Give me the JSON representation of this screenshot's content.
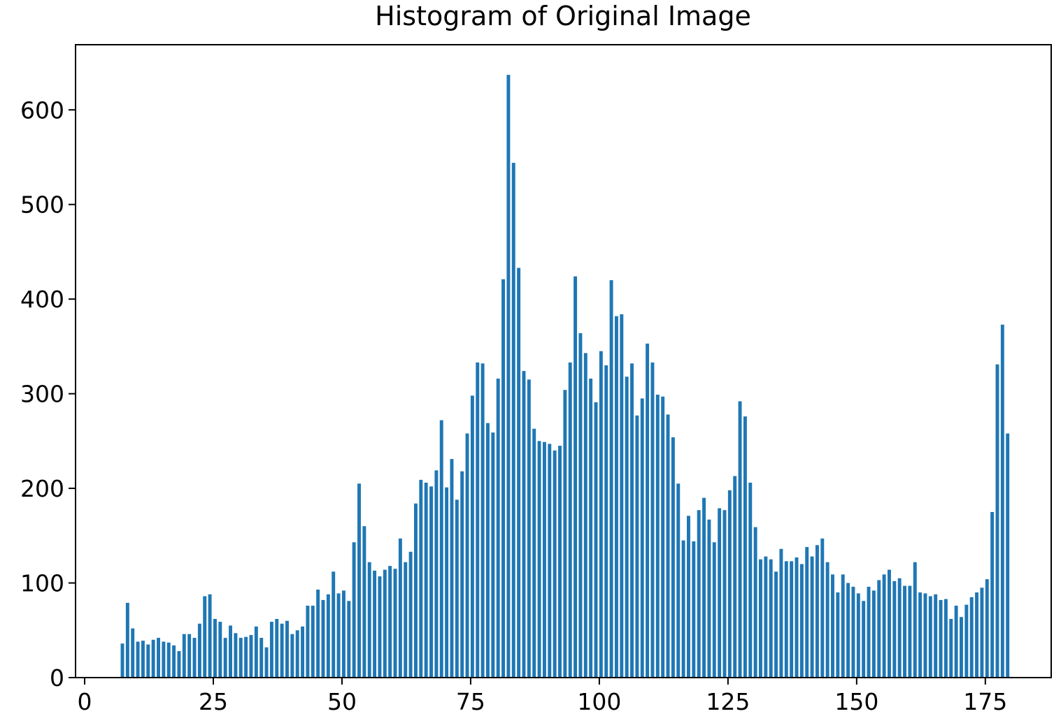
{
  "chart_data": {
    "type": "histogram",
    "title": "Histogram of Original Image",
    "bins": [
      7,
      8,
      9,
      10,
      11,
      12,
      13,
      14,
      15,
      16,
      17,
      18,
      19,
      20,
      21,
      22,
      23,
      24,
      25,
      26,
      27,
      28,
      29,
      30,
      31,
      32,
      33,
      34,
      35,
      36,
      37,
      38,
      39,
      40,
      41,
      42,
      43,
      44,
      45,
      46,
      47,
      48,
      49,
      50,
      51,
      52,
      53,
      54,
      55,
      56,
      57,
      58,
      59,
      60,
      61,
      62,
      63,
      64,
      65,
      66,
      67,
      68,
      69,
      70,
      71,
      72,
      73,
      74,
      75,
      76,
      77,
      78,
      79,
      80,
      81,
      82,
      83,
      84,
      85,
      86,
      87,
      88,
      89,
      90,
      91,
      92,
      93,
      94,
      95,
      96,
      97,
      98,
      99,
      100,
      101,
      102,
      103,
      104,
      105,
      106,
      107,
      108,
      109,
      110,
      111,
      112,
      113,
      114,
      115,
      116,
      117,
      118,
      119,
      120,
      121,
      122,
      123,
      124,
      125,
      126,
      127,
      128,
      129,
      130,
      131,
      132,
      133,
      134,
      135,
      136,
      137,
      138,
      139,
      140,
      141,
      142,
      143,
      144,
      145,
      146,
      147,
      148,
      149,
      150,
      151,
      152,
      153,
      154,
      155,
      156,
      157,
      158,
      159,
      160,
      161,
      162,
      163,
      164,
      165,
      166,
      167,
      168,
      169,
      170,
      171,
      172,
      173,
      174,
      175,
      176,
      177,
      178,
      179,
      180
    ],
    "values": [
      36,
      79,
      52,
      38,
      39,
      35,
      40,
      42,
      38,
      37,
      34,
      28,
      46,
      46,
      42,
      57,
      86,
      88,
      62,
      59,
      42,
      55,
      47,
      42,
      43,
      45,
      54,
      42,
      32,
      59,
      62,
      57,
      60,
      46,
      50,
      54,
      76,
      76,
      93,
      82,
      88,
      112,
      89,
      92,
      81,
      143,
      205,
      160,
      122,
      113,
      107,
      114,
      118,
      115,
      147,
      122,
      133,
      184,
      209,
      206,
      202,
      219,
      272,
      201,
      231,
      188,
      218,
      258,
      298,
      333,
      332,
      269,
      259,
      316,
      421,
      637,
      544,
      433,
      324,
      315,
      263,
      250,
      249,
      247,
      240,
      245,
      304,
      333,
      424,
      364,
      343,
      316,
      291,
      345,
      330,
      420,
      382,
      384,
      318,
      332,
      277,
      295,
      353,
      333,
      299,
      297,
      278,
      254,
      205,
      145,
      171,
      144,
      177,
      190,
      167,
      143,
      179,
      177,
      198,
      213,
      292,
      276,
      206,
      159,
      125,
      128,
      125,
      112,
      136,
      123,
      123,
      127,
      120,
      138,
      128,
      140,
      147,
      122,
      109,
      90,
      109,
      100,
      96,
      89,
      81,
      96,
      92,
      103,
      109,
      114,
      102,
      105,
      97,
      97,
      122,
      90,
      89,
      86,
      88,
      82,
      83,
      62,
      76,
      64,
      77,
      85,
      90,
      95,
      104,
      175,
      331,
      373,
      258
    ],
    "color": "#1f77b4",
    "rwidth": 0.67,
    "xlim": [
      -1.77,
      187.8
    ],
    "ylim": [
      0,
      668.85
    ],
    "xticks": [
      0,
      25,
      50,
      75,
      100,
      125,
      150,
      175
    ],
    "yticks": [
      0,
      100,
      200,
      300,
      400,
      500,
      600
    ]
  }
}
